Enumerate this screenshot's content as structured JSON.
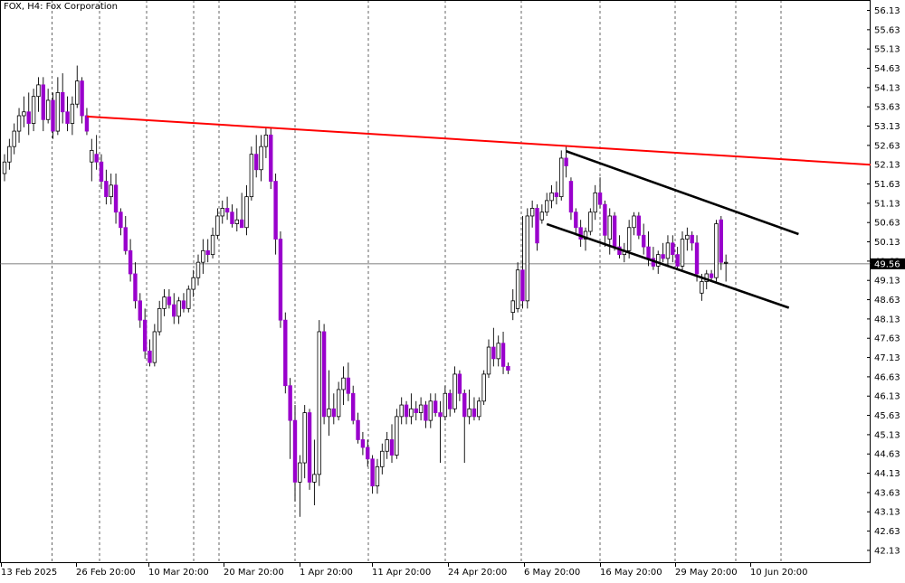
{
  "chart_data": {
    "type": "candlestick",
    "symbol": "FOX",
    "timeframe": "H4",
    "instrument_name": "Fox Corporation",
    "current_price": 49.56,
    "colors": {
      "bull": "#ffffff",
      "bear": "#9900cc",
      "wick": "#000000",
      "resistance_line": "#ff0000",
      "channel_lines": "#000000",
      "grid": "#000000"
    },
    "ylim": [
      41.8,
      56.4
    ],
    "y_ticks": [
      "56.13",
      "55.63",
      "55.13",
      "54.63",
      "54.13",
      "53.63",
      "53.13",
      "52.63",
      "52.13",
      "51.63",
      "51.13",
      "50.63",
      "50.13",
      "49.63",
      "49.13",
      "48.63",
      "48.13",
      "47.63",
      "47.13",
      "46.63",
      "46.13",
      "45.63",
      "45.13",
      "44.63",
      "44.13",
      "43.63",
      "43.13",
      "42.63",
      "42.13"
    ],
    "x_ticks": [
      "13 Feb 2025",
      "26 Feb 20:00",
      "10 Mar 20:00",
      "20 Mar 20:00",
      "1 Apr 20:00",
      "11 Apr 20:00",
      "24 Apr 20:00",
      "6 May 20:00",
      "16 May 20:00",
      "29 May 20:00",
      "10 Jun 20:00"
    ],
    "candles": [
      {
        "o": 51.9,
        "h": 52.4,
        "l": 51.7,
        "c": 52.2
      },
      {
        "o": 52.2,
        "h": 52.8,
        "l": 52.0,
        "c": 52.6
      },
      {
        "o": 52.6,
        "h": 53.2,
        "l": 52.4,
        "c": 53.0
      },
      {
        "o": 53.0,
        "h": 53.6,
        "l": 52.7,
        "c": 53.4
      },
      {
        "o": 53.4,
        "h": 53.9,
        "l": 53.1,
        "c": 53.5
      },
      {
        "o": 53.5,
        "h": 54.0,
        "l": 52.9,
        "c": 53.2
      },
      {
        "o": 53.2,
        "h": 54.1,
        "l": 53.0,
        "c": 53.9
      },
      {
        "o": 53.9,
        "h": 54.4,
        "l": 53.5,
        "c": 54.2
      },
      {
        "o": 54.2,
        "h": 54.4,
        "l": 53.0,
        "c": 53.3
      },
      {
        "o": 53.3,
        "h": 54.1,
        "l": 53.2,
        "c": 53.8
      },
      {
        "o": 53.8,
        "h": 54.0,
        "l": 52.8,
        "c": 53.0
      },
      {
        "o": 53.0,
        "h": 54.4,
        "l": 52.9,
        "c": 54.0
      },
      {
        "o": 54.0,
        "h": 54.5,
        "l": 53.2,
        "c": 53.5
      },
      {
        "o": 53.5,
        "h": 53.9,
        "l": 53.0,
        "c": 53.2
      },
      {
        "o": 53.2,
        "h": 53.9,
        "l": 52.9,
        "c": 53.7
      },
      {
        "o": 53.7,
        "h": 54.7,
        "l": 53.6,
        "c": 54.3
      },
      {
        "o": 54.3,
        "h": 54.4,
        "l": 53.2,
        "c": 53.4
      },
      {
        "o": 53.4,
        "h": 53.6,
        "l": 52.9,
        "c": 53.0
      },
      {
        "o": 52.2,
        "h": 52.8,
        "l": 51.7,
        "c": 52.5
      },
      {
        "o": 52.4,
        "h": 52.9,
        "l": 52.0,
        "c": 52.2
      },
      {
        "o": 52.2,
        "h": 52.4,
        "l": 51.5,
        "c": 51.7
      },
      {
        "o": 51.7,
        "h": 52.0,
        "l": 51.1,
        "c": 51.3
      },
      {
        "o": 51.3,
        "h": 51.9,
        "l": 51.1,
        "c": 51.6
      },
      {
        "o": 51.6,
        "h": 51.9,
        "l": 50.6,
        "c": 50.9
      },
      {
        "o": 50.9,
        "h": 51.0,
        "l": 50.3,
        "c": 50.5
      },
      {
        "o": 50.5,
        "h": 50.8,
        "l": 49.8,
        "c": 49.9
      },
      {
        "o": 49.9,
        "h": 50.2,
        "l": 49.1,
        "c": 49.3
      },
      {
        "o": 49.3,
        "h": 49.6,
        "l": 48.4,
        "c": 48.6
      },
      {
        "o": 48.6,
        "h": 48.8,
        "l": 47.9,
        "c": 48.1
      },
      {
        "o": 48.1,
        "h": 48.4,
        "l": 47.1,
        "c": 47.3
      },
      {
        "o": 47.3,
        "h": 47.6,
        "l": 46.9,
        "c": 47.0
      },
      {
        "o": 47.0,
        "h": 48.0,
        "l": 46.9,
        "c": 47.8
      },
      {
        "o": 47.8,
        "h": 48.6,
        "l": 47.7,
        "c": 48.4
      },
      {
        "o": 48.4,
        "h": 48.9,
        "l": 48.2,
        "c": 48.7
      },
      {
        "o": 48.7,
        "h": 48.9,
        "l": 48.4,
        "c": 48.5
      },
      {
        "o": 48.5,
        "h": 48.8,
        "l": 48.0,
        "c": 48.2
      },
      {
        "o": 48.2,
        "h": 48.7,
        "l": 48.0,
        "c": 48.6
      },
      {
        "o": 48.6,
        "h": 48.8,
        "l": 48.3,
        "c": 48.4
      },
      {
        "o": 48.4,
        "h": 49.0,
        "l": 48.3,
        "c": 48.9
      },
      {
        "o": 48.9,
        "h": 49.4,
        "l": 48.7,
        "c": 49.2
      },
      {
        "o": 49.2,
        "h": 49.8,
        "l": 49.0,
        "c": 49.6
      },
      {
        "o": 49.6,
        "h": 50.2,
        "l": 49.3,
        "c": 49.9
      },
      {
        "o": 49.9,
        "h": 50.2,
        "l": 49.6,
        "c": 49.8
      },
      {
        "o": 49.8,
        "h": 50.5,
        "l": 49.7,
        "c": 50.3
      },
      {
        "o": 50.3,
        "h": 51.0,
        "l": 50.2,
        "c": 50.8
      },
      {
        "o": 50.8,
        "h": 51.2,
        "l": 50.6,
        "c": 51.0
      },
      {
        "o": 51.0,
        "h": 51.3,
        "l": 50.7,
        "c": 50.9
      },
      {
        "o": 50.9,
        "h": 51.1,
        "l": 50.5,
        "c": 50.6
      },
      {
        "o": 50.6,
        "h": 51.0,
        "l": 50.4,
        "c": 50.7
      },
      {
        "o": 50.7,
        "h": 51.4,
        "l": 50.5,
        "c": 50.5
      },
      {
        "o": 50.5,
        "h": 51.6,
        "l": 50.3,
        "c": 51.3
      },
      {
        "o": 51.3,
        "h": 52.6,
        "l": 51.2,
        "c": 52.4
      },
      {
        "o": 52.4,
        "h": 52.9,
        "l": 51.8,
        "c": 52.0
      },
      {
        "o": 52.0,
        "h": 52.9,
        "l": 51.7,
        "c": 52.6
      },
      {
        "o": 52.6,
        "h": 53.1,
        "l": 52.3,
        "c": 52.9
      },
      {
        "o": 52.9,
        "h": 53.1,
        "l": 51.5,
        "c": 51.7
      },
      {
        "o": 51.7,
        "h": 51.9,
        "l": 49.8,
        "c": 50.2
      },
      {
        "o": 50.2,
        "h": 50.4,
        "l": 47.9,
        "c": 48.1
      },
      {
        "o": 48.1,
        "h": 48.3,
        "l": 46.2,
        "c": 46.4
      },
      {
        "o": 46.4,
        "h": 46.6,
        "l": 44.5,
        "c": 45.5
      },
      {
        "o": 45.5,
        "h": 45.9,
        "l": 43.4,
        "c": 43.9
      },
      {
        "o": 43.9,
        "h": 44.6,
        "l": 43.0,
        "c": 44.4
      },
      {
        "o": 44.4,
        "h": 45.9,
        "l": 44.0,
        "c": 45.7
      },
      {
        "o": 45.7,
        "h": 45.8,
        "l": 43.7,
        "c": 43.9
      },
      {
        "o": 43.9,
        "h": 45.0,
        "l": 43.3,
        "c": 44.1
      },
      {
        "o": 44.1,
        "h": 48.1,
        "l": 43.8,
        "c": 47.8
      },
      {
        "o": 47.8,
        "h": 48.0,
        "l": 45.4,
        "c": 45.6
      },
      {
        "o": 45.6,
        "h": 46.8,
        "l": 45.1,
        "c": 45.8
      },
      {
        "o": 45.8,
        "h": 46.2,
        "l": 45.4,
        "c": 45.6
      },
      {
        "o": 45.6,
        "h": 46.5,
        "l": 45.5,
        "c": 46.3
      },
      {
        "o": 46.3,
        "h": 46.9,
        "l": 45.9,
        "c": 46.6
      },
      {
        "o": 46.6,
        "h": 47.0,
        "l": 46.0,
        "c": 46.2
      },
      {
        "o": 46.2,
        "h": 46.4,
        "l": 45.4,
        "c": 45.5
      },
      {
        "o": 45.5,
        "h": 45.7,
        "l": 44.9,
        "c": 45.0
      },
      {
        "o": 45.0,
        "h": 45.2,
        "l": 44.6,
        "c": 44.8
      },
      {
        "o": 44.8,
        "h": 45.0,
        "l": 44.3,
        "c": 44.5
      },
      {
        "o": 44.5,
        "h": 44.6,
        "l": 43.6,
        "c": 43.8
      },
      {
        "o": 43.8,
        "h": 44.5,
        "l": 43.6,
        "c": 44.3
      },
      {
        "o": 44.3,
        "h": 44.9,
        "l": 44.1,
        "c": 44.7
      },
      {
        "o": 44.7,
        "h": 45.2,
        "l": 44.5,
        "c": 45.0
      },
      {
        "o": 45.0,
        "h": 45.4,
        "l": 44.4,
        "c": 44.6
      },
      {
        "o": 44.6,
        "h": 45.8,
        "l": 44.5,
        "c": 45.6
      },
      {
        "o": 45.6,
        "h": 46.1,
        "l": 45.4,
        "c": 45.9
      },
      {
        "o": 45.9,
        "h": 46.0,
        "l": 45.4,
        "c": 45.6
      },
      {
        "o": 45.6,
        "h": 46.2,
        "l": 45.4,
        "c": 45.8
      },
      {
        "o": 45.8,
        "h": 46.0,
        "l": 45.5,
        "c": 45.7
      },
      {
        "o": 45.7,
        "h": 46.1,
        "l": 45.5,
        "c": 45.9
      },
      {
        "o": 45.9,
        "h": 46.0,
        "l": 45.3,
        "c": 45.5
      },
      {
        "o": 45.5,
        "h": 46.2,
        "l": 45.3,
        "c": 46.0
      },
      {
        "o": 46.0,
        "h": 46.2,
        "l": 45.6,
        "c": 45.7
      },
      {
        "o": 45.7,
        "h": 46.0,
        "l": 44.4,
        "c": 45.6
      },
      {
        "o": 45.6,
        "h": 46.4,
        "l": 45.5,
        "c": 46.2
      },
      {
        "o": 46.2,
        "h": 46.3,
        "l": 45.6,
        "c": 45.8
      },
      {
        "o": 45.8,
        "h": 46.9,
        "l": 45.7,
        "c": 46.7
      },
      {
        "o": 46.7,
        "h": 46.8,
        "l": 46.0,
        "c": 46.2
      },
      {
        "o": 46.2,
        "h": 46.3,
        "l": 44.4,
        "c": 45.6
      },
      {
        "o": 45.6,
        "h": 46.3,
        "l": 45.4,
        "c": 45.8
      },
      {
        "o": 45.8,
        "h": 46.1,
        "l": 45.5,
        "c": 45.6
      },
      {
        "o": 45.6,
        "h": 46.1,
        "l": 45.5,
        "c": 46.0
      },
      {
        "o": 46.0,
        "h": 46.8,
        "l": 45.9,
        "c": 46.7
      },
      {
        "o": 46.7,
        "h": 47.6,
        "l": 46.6,
        "c": 47.4
      },
      {
        "o": 47.4,
        "h": 47.9,
        "l": 46.9,
        "c": 47.1
      },
      {
        "o": 47.1,
        "h": 47.7,
        "l": 46.9,
        "c": 47.5
      },
      {
        "o": 47.5,
        "h": 47.8,
        "l": 46.7,
        "c": 46.9
      },
      {
        "o": 46.9,
        "h": 47.0,
        "l": 46.7,
        "c": 46.8
      },
      {
        "o": 48.3,
        "h": 48.9,
        "l": 48.1,
        "c": 48.6
      },
      {
        "o": 48.4,
        "h": 49.6,
        "l": 48.3,
        "c": 49.4
      },
      {
        "o": 49.4,
        "h": 50.8,
        "l": 48.4,
        "c": 48.6
      },
      {
        "o": 48.6,
        "h": 51.0,
        "l": 48.4,
        "c": 50.8
      },
      {
        "o": 50.8,
        "h": 51.2,
        "l": 50.5,
        "c": 51.0
      },
      {
        "o": 51.0,
        "h": 51.1,
        "l": 49.9,
        "c": 50.1
      },
      {
        "o": 50.7,
        "h": 51.1,
        "l": 50.6,
        "c": 50.9
      },
      {
        "o": 50.9,
        "h": 51.4,
        "l": 50.8,
        "c": 51.2
      },
      {
        "o": 51.2,
        "h": 51.6,
        "l": 51.0,
        "c": 51.4
      },
      {
        "o": 51.4,
        "h": 51.7,
        "l": 51.1,
        "c": 51.3
      },
      {
        "o": 51.3,
        "h": 52.5,
        "l": 51.2,
        "c": 52.3
      },
      {
        "o": 52.3,
        "h": 52.6,
        "l": 51.8,
        "c": 52.1
      },
      {
        "o": 51.7,
        "h": 51.8,
        "l": 50.7,
        "c": 50.9
      },
      {
        "o": 50.9,
        "h": 51.0,
        "l": 50.3,
        "c": 50.5
      },
      {
        "o": 50.5,
        "h": 50.7,
        "l": 50.0,
        "c": 50.2
      },
      {
        "o": 50.2,
        "h": 50.5,
        "l": 49.9,
        "c": 50.4
      },
      {
        "o": 50.4,
        "h": 51.0,
        "l": 50.3,
        "c": 50.9
      },
      {
        "o": 50.9,
        "h": 51.6,
        "l": 50.7,
        "c": 51.4
      },
      {
        "o": 51.4,
        "h": 51.8,
        "l": 51.0,
        "c": 51.1
      },
      {
        "o": 51.1,
        "h": 51.2,
        "l": 50.0,
        "c": 50.3
      },
      {
        "o": 50.2,
        "h": 51.0,
        "l": 49.8,
        "c": 50.8
      },
      {
        "o": 50.8,
        "h": 50.9,
        "l": 49.9,
        "c": 50.0
      },
      {
        "o": 50.0,
        "h": 50.3,
        "l": 49.7,
        "c": 49.8
      },
      {
        "o": 49.8,
        "h": 50.1,
        "l": 49.6,
        "c": 49.9
      },
      {
        "o": 49.9,
        "h": 50.7,
        "l": 49.7,
        "c": 50.5
      },
      {
        "o": 50.5,
        "h": 50.9,
        "l": 50.3,
        "c": 50.8
      },
      {
        "o": 50.8,
        "h": 50.9,
        "l": 50.2,
        "c": 50.3
      },
      {
        "o": 50.3,
        "h": 50.6,
        "l": 49.8,
        "c": 50.0
      },
      {
        "o": 50.0,
        "h": 50.4,
        "l": 49.5,
        "c": 49.7
      },
      {
        "o": 49.7,
        "h": 50.0,
        "l": 49.4,
        "c": 49.5
      },
      {
        "o": 49.5,
        "h": 49.9,
        "l": 49.3,
        "c": 49.8
      },
      {
        "o": 49.8,
        "h": 50.1,
        "l": 49.6,
        "c": 49.7
      },
      {
        "o": 49.7,
        "h": 50.3,
        "l": 49.5,
        "c": 50.1
      },
      {
        "o": 50.1,
        "h": 50.3,
        "l": 49.6,
        "c": 49.8
      },
      {
        "o": 49.8,
        "h": 50.0,
        "l": 49.4,
        "c": 49.5
      },
      {
        "o": 49.5,
        "h": 50.4,
        "l": 49.4,
        "c": 50.2
      },
      {
        "o": 50.2,
        "h": 50.5,
        "l": 49.9,
        "c": 50.3
      },
      {
        "o": 50.3,
        "h": 50.4,
        "l": 49.9,
        "c": 50.1
      },
      {
        "o": 50.1,
        "h": 50.3,
        "l": 49.1,
        "c": 49.3
      },
      {
        "o": 48.8,
        "h": 49.3,
        "l": 48.6,
        "c": 49.1
      },
      {
        "o": 49.1,
        "h": 49.4,
        "l": 48.9,
        "c": 49.3
      },
      {
        "o": 49.3,
        "h": 49.4,
        "l": 49.1,
        "c": 49.2
      },
      {
        "o": 49.2,
        "h": 50.7,
        "l": 49.1,
        "c": 50.6
      },
      {
        "o": 50.7,
        "h": 50.8,
        "l": 49.4,
        "c": 49.6
      },
      {
        "o": 49.6,
        "h": 49.8,
        "l": 49.1,
        "c": 49.6
      }
    ],
    "trendlines": [
      {
        "name": "resistance",
        "color": "#ff0000",
        "from": {
          "bar": 17,
          "price": 53.38
        },
        "to": {
          "bar": "right-edge",
          "price": 52.13
        }
      },
      {
        "name": "channel-upper",
        "color": "#000000",
        "from": {
          "bar": 116,
          "price": 52.48
        },
        "to": {
          "bar": 164,
          "price": 50.33
        }
      },
      {
        "name": "channel-lower",
        "color": "#000000",
        "from": {
          "bar": 112,
          "price": 50.59
        },
        "to": {
          "bar": 162,
          "price": 48.42
        }
      }
    ],
    "grid": "vertical-dashed",
    "legend": "none"
  },
  "header": {
    "title": "FOX, H4:  Fox Corporation"
  }
}
